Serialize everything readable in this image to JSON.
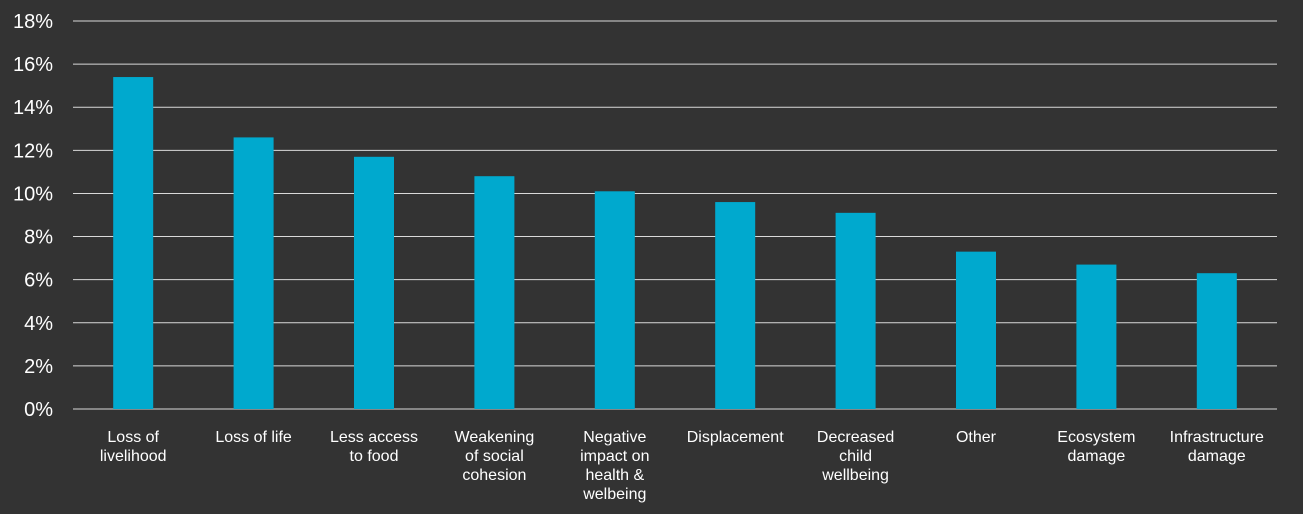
{
  "chart_data": {
    "type": "bar",
    "categories": [
      [
        "Loss of",
        "livelihood"
      ],
      [
        "Loss of life"
      ],
      [
        "Less access",
        "to food"
      ],
      [
        "Weakening",
        "of social",
        "cohesion"
      ],
      [
        "Negative",
        "impact on",
        "health &",
        "welbeing"
      ],
      [
        "Displacement"
      ],
      [
        "Decreased",
        "child",
        "wellbeing"
      ],
      [
        "Other"
      ],
      [
        "Ecosystem",
        "damage"
      ],
      [
        "Infrastructure",
        "damage"
      ]
    ],
    "values": [
      15.4,
      12.6,
      11.7,
      10.8,
      10.1,
      9.6,
      9.1,
      7.3,
      6.7,
      6.3
    ],
    "title": "",
    "xlabel": "",
    "ylabel": "",
    "ylim": [
      0,
      18
    ],
    "yticks": [
      "0%",
      "2%",
      "4%",
      "6%",
      "8%",
      "10%",
      "12%",
      "14%",
      "16%",
      "18%"
    ],
    "grid": true,
    "bar_color": "#00a9ce",
    "grid_color": "#d9d9d9",
    "background_color": "#333333"
  }
}
